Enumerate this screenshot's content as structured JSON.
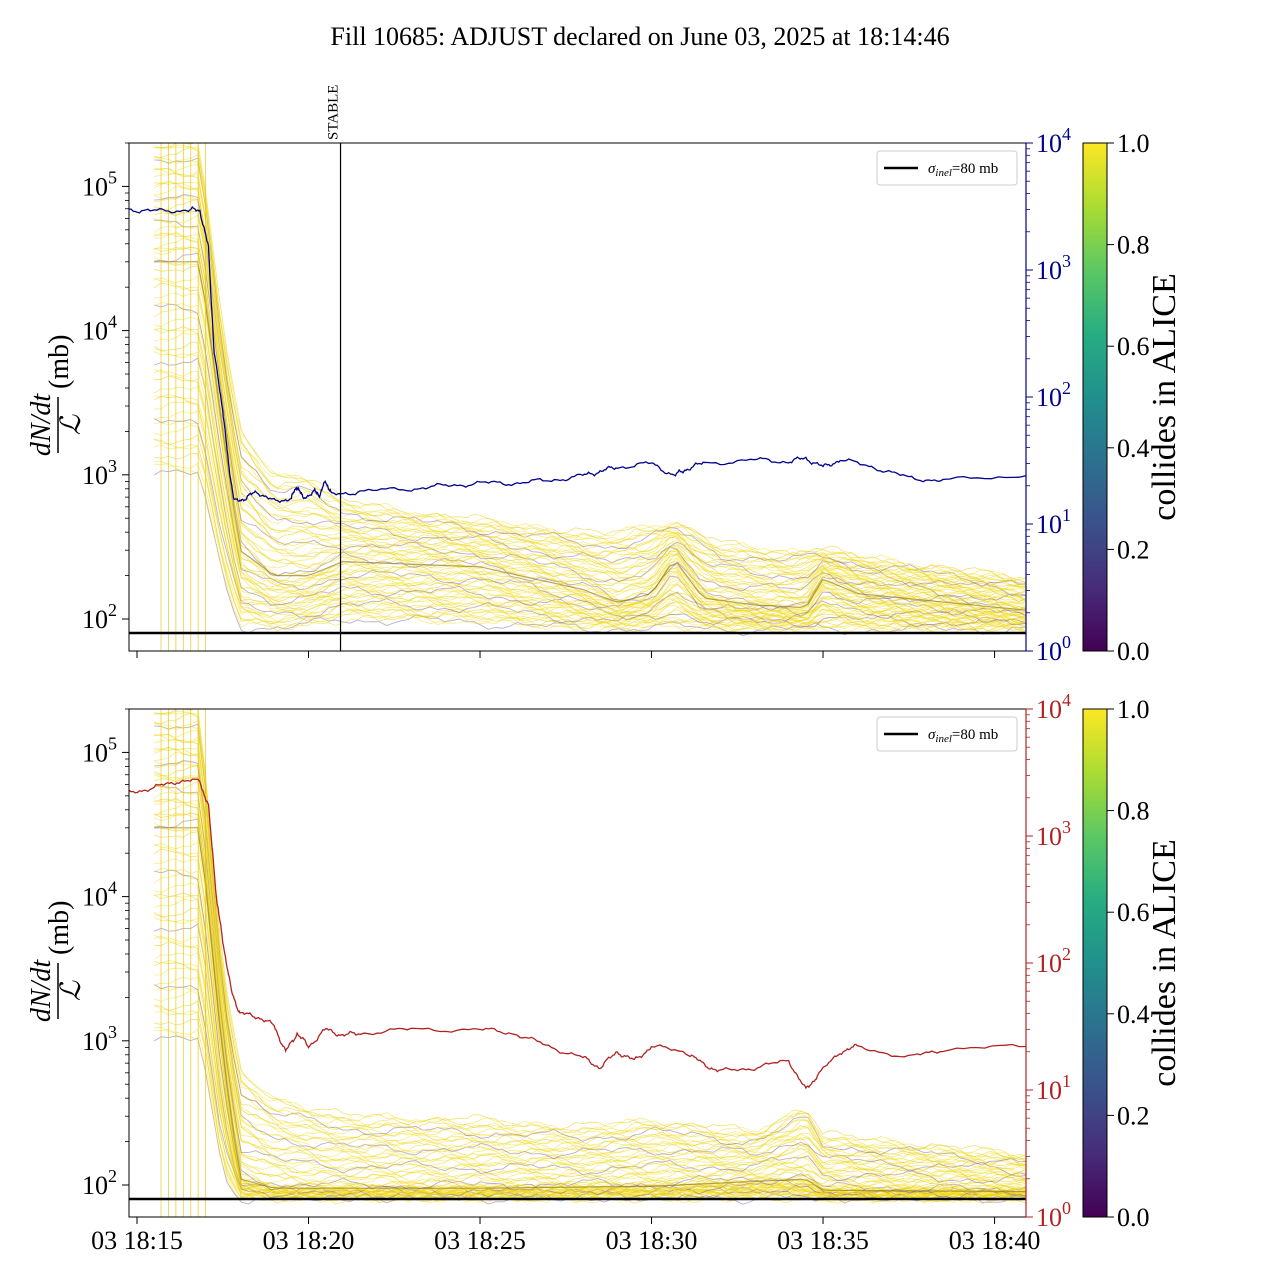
{
  "title": "Fill 10685: ADJUST declared on June 03, 2025 at 18:14:46",
  "colors": {
    "left_axis": "#000000",
    "top_right_axis": "#00008b",
    "bottom_right_axis": "#b22222",
    "reference": "#000000"
  },
  "colorbar": {
    "label": "collides in ALICE",
    "colormap": "viridis",
    "ticks": [
      "0.0",
      "0.2",
      "0.4",
      "0.6",
      "0.8",
      "1.0"
    ]
  },
  "chart_data": [
    {
      "type": "line",
      "panel": "top",
      "ylabel_fraction_num": "dN/dt",
      "ylabel_fraction_den": "ℒ",
      "ylabel_unit": "(mb)",
      "yscale": "log",
      "ylim": [
        60,
        200000
      ],
      "y_ticks": [
        {
          "base": "10",
          "exp": "2",
          "value": 100
        },
        {
          "base": "10",
          "exp": "3",
          "value": 1000
        },
        {
          "base": "10",
          "exp": "4",
          "value": 10000
        },
        {
          "base": "10",
          "exp": "5",
          "value": 100000
        }
      ],
      "x_ticks": [],
      "xlim": [
        "2025-06-03 18:14:46",
        "2025-06-03 18:40:55"
      ],
      "right_axis": {
        "scale": "log",
        "ylim": [
          1,
          10000
        ],
        "color": "#00008b",
        "ticks": [
          {
            "base": "10",
            "exp": "0"
          },
          {
            "base": "10",
            "exp": "1"
          },
          {
            "base": "10",
            "exp": "2"
          },
          {
            "base": "10",
            "exp": "3"
          },
          {
            "base": "10",
            "exp": "4"
          }
        ],
        "series_points": [
          [
            "18:14:46",
            3000
          ],
          [
            "18:15:30",
            2900
          ],
          [
            "18:16:30",
            2980
          ],
          [
            "18:16:50",
            2950
          ],
          [
            "18:17:05",
            1500
          ],
          [
            "18:17:15",
            220
          ],
          [
            "18:17:30",
            80
          ],
          [
            "18:17:40",
            30
          ],
          [
            "18:17:50",
            15
          ],
          [
            "18:18:10",
            16
          ],
          [
            "18:18:30",
            18
          ],
          [
            "18:19:00",
            15
          ],
          [
            "18:19:30",
            16
          ],
          [
            "18:19:40",
            20
          ],
          [
            "18:19:50",
            16
          ],
          [
            "18:20:10",
            18
          ],
          [
            "18:20:20",
            17
          ],
          [
            "18:20:30",
            22
          ],
          [
            "18:20:40",
            17
          ],
          [
            "18:21:30",
            18
          ],
          [
            "18:23:00",
            19
          ],
          [
            "18:24:00",
            20
          ],
          [
            "18:25:00",
            21
          ],
          [
            "18:26:00",
            21
          ],
          [
            "18:27:00",
            22
          ],
          [
            "18:28:00",
            24
          ],
          [
            "18:28:30",
            26
          ],
          [
            "18:29:00",
            28
          ],
          [
            "18:30:00",
            30
          ],
          [
            "18:30:40",
            24
          ],
          [
            "18:31:00",
            27
          ],
          [
            "18:31:30",
            30
          ],
          [
            "18:33:00",
            32
          ],
          [
            "18:34:00",
            31
          ],
          [
            "18:34:30",
            33
          ],
          [
            "18:35:00",
            28
          ],
          [
            "18:35:30",
            32
          ],
          [
            "18:36:30",
            28
          ],
          [
            "18:37:30",
            23
          ],
          [
            "18:38:30",
            22
          ],
          [
            "18:40:55",
            24
          ]
        ]
      },
      "reference_line": {
        "label": "σinel=80 mb",
        "label_sym": "σ",
        "label_sub": "inel",
        "label_rest": "=80 mb",
        "value": 80
      },
      "marker": {
        "label": "STABLE",
        "time": "18:20:56"
      },
      "band": {
        "lower": [
          [
            "18:15:30",
            1000
          ],
          [
            "18:16:50",
            1000
          ],
          [
            "18:17:30",
            200
          ],
          [
            "18:18:00",
            90
          ],
          [
            "18:19:00",
            85
          ],
          [
            "18:20:00",
            90
          ],
          [
            "18:21:00",
            100
          ],
          [
            "18:25:00",
            95
          ],
          [
            "18:28:00",
            85
          ],
          [
            "18:30:00",
            88
          ],
          [
            "18:33:00",
            85
          ],
          [
            "18:36:00",
            85
          ],
          [
            "18:40:55",
            85
          ]
        ],
        "upper": [
          [
            "18:15:30",
            200000
          ],
          [
            "18:16:50",
            200000
          ],
          [
            "18:17:30",
            10000
          ],
          [
            "18:18:00",
            2000
          ],
          [
            "18:19:00",
            1000
          ],
          [
            "18:20:00",
            1000
          ],
          [
            "18:21:00",
            650
          ],
          [
            "18:23:00",
            550
          ],
          [
            "18:25:00",
            480
          ],
          [
            "18:27:00",
            420
          ],
          [
            "18:28:30",
            380
          ],
          [
            "18:30:40",
            470
          ],
          [
            "18:32:00",
            330
          ],
          [
            "18:34:00",
            290
          ],
          [
            "18:34:40",
            310
          ],
          [
            "18:36:00",
            270
          ],
          [
            "18:38:00",
            230
          ],
          [
            "18:40:55",
            190
          ]
        ],
        "median": [
          [
            "18:15:30",
            30000
          ],
          [
            "18:16:50",
            30000
          ],
          [
            "18:17:30",
            2000
          ],
          [
            "18:18:00",
            300
          ],
          [
            "18:19:00",
            200
          ],
          [
            "18:20:00",
            200
          ],
          [
            "18:21:00",
            250
          ],
          [
            "18:25:00",
            230
          ],
          [
            "18:28:00",
            160
          ],
          [
            "18:29:00",
            130
          ],
          [
            "18:30:00",
            150
          ],
          [
            "18:30:40",
            260
          ],
          [
            "18:31:30",
            140
          ],
          [
            "18:33:00",
            125
          ],
          [
            "18:34:30",
            120
          ],
          [
            "18:35:00",
            190
          ],
          [
            "18:36:00",
            150
          ],
          [
            "18:40:55",
            115
          ]
        ]
      }
    },
    {
      "type": "line",
      "panel": "bottom",
      "ylabel_fraction_num": "dN/dt",
      "ylabel_fraction_den": "ℒ",
      "ylabel_unit": "(mb)",
      "yscale": "log",
      "ylim": [
        60,
        200000
      ],
      "y_ticks": [
        {
          "base": "10",
          "exp": "2",
          "value": 100
        },
        {
          "base": "10",
          "exp": "3",
          "value": 1000
        },
        {
          "base": "10",
          "exp": "4",
          "value": 10000
        },
        {
          "base": "10",
          "exp": "5",
          "value": 100000
        }
      ],
      "x_ticks": [
        {
          "label": "03 18:15",
          "time": "18:15:00"
        },
        {
          "label": "03 18:20",
          "time": "18:20:00"
        },
        {
          "label": "03 18:25",
          "time": "18:25:00"
        },
        {
          "label": "03 18:30",
          "time": "18:30:00"
        },
        {
          "label": "03 18:35",
          "time": "18:35:00"
        },
        {
          "label": "03 18:40",
          "time": "18:40:00"
        }
      ],
      "xlim": [
        "2025-06-03 18:14:46",
        "2025-06-03 18:40:55"
      ],
      "right_axis": {
        "scale": "log",
        "ylim": [
          1,
          10000
        ],
        "color": "#b22222",
        "ticks": [
          {
            "base": "10",
            "exp": "0"
          },
          {
            "base": "10",
            "exp": "1"
          },
          {
            "base": "10",
            "exp": "2"
          },
          {
            "base": "10",
            "exp": "3"
          },
          {
            "base": "10",
            "exp": "4"
          }
        ],
        "series_points": [
          [
            "18:14:46",
            2200
          ],
          [
            "18:15:30",
            2400
          ],
          [
            "18:16:10",
            2700
          ],
          [
            "18:16:50",
            2700
          ],
          [
            "18:17:05",
            1700
          ],
          [
            "18:17:20",
            300
          ],
          [
            "18:17:30",
            150
          ],
          [
            "18:17:45",
            60
          ],
          [
            "18:18:00",
            40
          ],
          [
            "18:18:30",
            38
          ],
          [
            "18:19:00",
            32
          ],
          [
            "18:19:20",
            20
          ],
          [
            "18:19:40",
            28
          ],
          [
            "18:20:00",
            22
          ],
          [
            "18:20:30",
            30
          ],
          [
            "18:21:00",
            27
          ],
          [
            "18:21:30",
            28
          ],
          [
            "18:23:00",
            30
          ],
          [
            "18:25:00",
            30
          ],
          [
            "18:26:00",
            28
          ],
          [
            "18:27:00",
            22
          ],
          [
            "18:28:00",
            18
          ],
          [
            "18:28:30",
            15
          ],
          [
            "18:29:00",
            20
          ],
          [
            "18:29:30",
            17
          ],
          [
            "18:30:00",
            22
          ],
          [
            "18:31:00",
            20
          ],
          [
            "18:31:30",
            16
          ],
          [
            "18:32:00",
            14
          ],
          [
            "18:33:00",
            15
          ],
          [
            "18:34:00",
            17
          ],
          [
            "18:34:30",
            10
          ],
          [
            "18:34:50",
            13
          ],
          [
            "18:35:30",
            20
          ],
          [
            "18:36:00",
            22
          ],
          [
            "18:37:30",
            18
          ],
          [
            "18:38:30",
            21
          ],
          [
            "18:40:55",
            22
          ]
        ]
      },
      "reference_line": {
        "label": "σinel=80 mb",
        "label_sym": "σ",
        "label_sub": "inel",
        "label_rest": "=80 mb",
        "value": 80
      },
      "band": {
        "lower": [
          [
            "18:15:30",
            1000
          ],
          [
            "18:16:50",
            1000
          ],
          [
            "18:17:30",
            120
          ],
          [
            "18:18:00",
            82
          ],
          [
            "18:40:55",
            82
          ]
        ],
        "upper": [
          [
            "18:15:30",
            200000
          ],
          [
            "18:16:50",
            200000
          ],
          [
            "18:17:30",
            3000
          ],
          [
            "18:18:00",
            600
          ],
          [
            "18:19:00",
            400
          ],
          [
            "18:21:00",
            300
          ],
          [
            "18:25:00",
            280
          ],
          [
            "18:28:00",
            250
          ],
          [
            "18:30:00",
            280
          ],
          [
            "18:33:00",
            230
          ],
          [
            "18:34:30",
            350
          ],
          [
            "18:35:00",
            220
          ],
          [
            "18:40:55",
            160
          ]
        ],
        "median": [
          [
            "18:15:30",
            30000
          ],
          [
            "18:16:50",
            30000
          ],
          [
            "18:17:30",
            800
          ],
          [
            "18:18:00",
            110
          ],
          [
            "18:19:00",
            95
          ],
          [
            "18:25:00",
            95
          ],
          [
            "18:30:00",
            98
          ],
          [
            "18:34:30",
            110
          ],
          [
            "18:35:00",
            92
          ],
          [
            "18:40:55",
            90
          ]
        ]
      }
    }
  ]
}
